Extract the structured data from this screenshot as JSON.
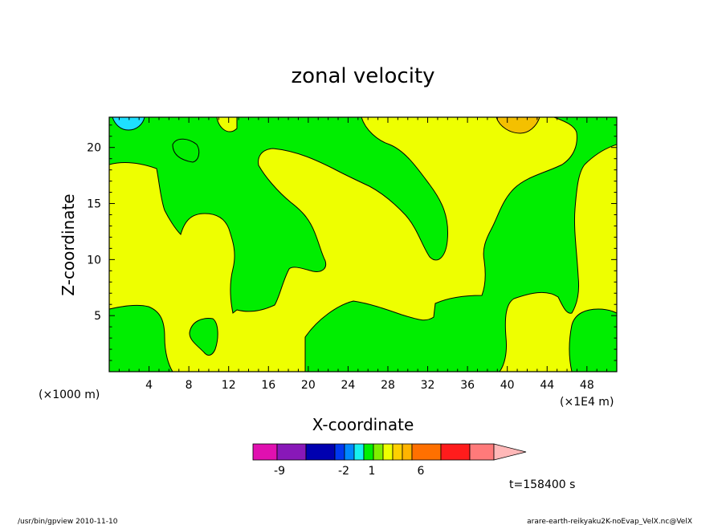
{
  "chart_data": {
    "type": "heatmap",
    "title": "zonal velocity",
    "xlabel": "X-coordinate",
    "ylabel": "Z-coordinate",
    "x_unit_left": "(×1000 m)",
    "x_unit_right": "(×1E4 m)",
    "x_ticks": [
      "4",
      "8",
      "12",
      "16",
      "20",
      "24",
      "28",
      "32",
      "36",
      "40",
      "44",
      "48"
    ],
    "y_ticks": [
      "5",
      "10",
      "15",
      "20"
    ],
    "xlim": [
      0,
      51
    ],
    "ylim": [
      0,
      22.7
    ],
    "fill_colors": {
      "background": "#eeff00",
      "green": "#00ee00",
      "cyan": "#1ee0ff",
      "orange": "#f4c000"
    },
    "colorbar": {
      "colors": [
        "#e010b0",
        "#8818b8",
        "#0000b0",
        "#0038f0",
        "#0088ff",
        "#18f0f0",
        "#00ee00",
        "#80ee00",
        "#eeff00",
        "#ffd000",
        "#ffb400",
        "#ff7000",
        "#ff1c1c",
        "#ff7a7a",
        "#ffb8b8"
      ],
      "labels": [
        "-9",
        "-2",
        "1",
        "6"
      ]
    },
    "annotation_time": "t=158400 s"
  },
  "footer": {
    "left": "/usr/bin/gpview   2010-11-10",
    "right": "arare-earth-reikyaku2K-noEvap_VelX.nc@VelX"
  }
}
